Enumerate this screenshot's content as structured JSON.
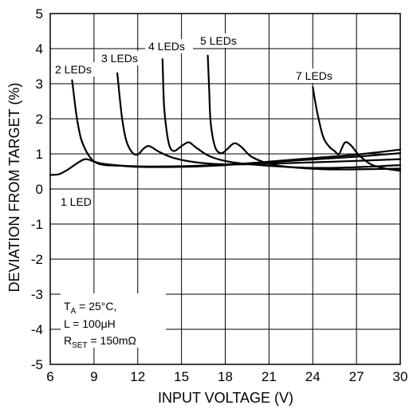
{
  "chart_data": {
    "type": "line",
    "xlabel": "INPUT VOLTAGE (V)",
    "ylabel": "DEVIATION FROM TARGET (%)",
    "xlim": [
      6,
      30
    ],
    "ylim": [
      -5,
      5
    ],
    "x_ticks": [
      "6",
      "9",
      "12",
      "15",
      "18",
      "21",
      "24",
      "27",
      "30"
    ],
    "y_ticks": [
      "5",
      "4",
      "3",
      "2",
      "1",
      "0",
      "-1",
      "-2",
      "-3",
      "-4",
      "-5"
    ],
    "grid": true,
    "series": [
      {
        "name": "1 LED",
        "points": [
          [
            6,
            0.4
          ],
          [
            6.6,
            0.42
          ],
          [
            7.2,
            0.55
          ],
          [
            7.8,
            0.72
          ],
          [
            8.4,
            0.85
          ],
          [
            9.0,
            0.78
          ],
          [
            9.6,
            0.72
          ],
          [
            10.5,
            0.68
          ],
          [
            12,
            0.63
          ],
          [
            15,
            0.63
          ],
          [
            18,
            0.68
          ],
          [
            21,
            0.78
          ],
          [
            24,
            0.88
          ],
          [
            27,
            0.98
          ],
          [
            30,
            1.12
          ]
        ]
      },
      {
        "name": "2 LEDs",
        "points": [
          [
            7.5,
            3.1
          ],
          [
            7.8,
            2.1
          ],
          [
            8.1,
            1.45
          ],
          [
            8.5,
            1.05
          ],
          [
            8.9,
            0.82
          ],
          [
            9.3,
            0.72
          ],
          [
            9.8,
            0.68
          ],
          [
            11,
            0.66
          ],
          [
            13,
            0.64
          ],
          [
            16,
            0.66
          ],
          [
            20,
            0.74
          ],
          [
            24,
            0.84
          ],
          [
            27,
            0.92
          ],
          [
            30,
            1.02
          ]
        ]
      },
      {
        "name": "3 LEDs",
        "points": [
          [
            10.6,
            3.3
          ],
          [
            10.9,
            2.1
          ],
          [
            11.2,
            1.4
          ],
          [
            11.6,
            1.05
          ],
          [
            12.0,
            0.98
          ],
          [
            12.4,
            1.15
          ],
          [
            12.8,
            1.22
          ],
          [
            13.5,
            1.05
          ],
          [
            14.5,
            0.88
          ],
          [
            16,
            0.76
          ],
          [
            18,
            0.7
          ],
          [
            21,
            0.72
          ],
          [
            24,
            0.76
          ],
          [
            27,
            0.8
          ],
          [
            30,
            0.85
          ]
        ]
      },
      {
        "name": "4 LEDs",
        "points": [
          [
            13.7,
            3.7
          ],
          [
            13.8,
            2.4
          ],
          [
            14.0,
            1.6
          ],
          [
            14.2,
            1.2
          ],
          [
            14.5,
            1.08
          ],
          [
            15.0,
            1.22
          ],
          [
            15.5,
            1.33
          ],
          [
            16.0,
            1.18
          ],
          [
            17,
            0.92
          ],
          [
            18.5,
            0.76
          ],
          [
            21,
            0.66
          ],
          [
            24,
            0.6
          ],
          [
            27,
            0.62
          ],
          [
            30,
            0.68
          ]
        ]
      },
      {
        "name": "5 LEDs",
        "points": [
          [
            16.8,
            3.8
          ],
          [
            16.9,
            2.8
          ],
          [
            17.0,
            1.9
          ],
          [
            17.3,
            1.2
          ],
          [
            17.7,
            1.02
          ],
          [
            18.1,
            1.12
          ],
          [
            18.6,
            1.3
          ],
          [
            19.1,
            1.2
          ],
          [
            19.8,
            0.92
          ],
          [
            21,
            0.72
          ],
          [
            22.5,
            0.62
          ],
          [
            25,
            0.56
          ],
          [
            27,
            0.56
          ],
          [
            30,
            0.58
          ]
        ]
      },
      {
        "name": "7 LEDs",
        "points": [
          [
            24.0,
            2.9
          ],
          [
            24.3,
            2.2
          ],
          [
            24.7,
            1.5
          ],
          [
            25.1,
            1.22
          ],
          [
            25.5,
            1.08
          ],
          [
            25.8,
            1.0
          ],
          [
            26.2,
            1.32
          ],
          [
            26.6,
            1.25
          ],
          [
            27.2,
            0.95
          ],
          [
            28,
            0.7
          ],
          [
            29,
            0.58
          ],
          [
            30,
            0.52
          ]
        ]
      }
    ],
    "series_labels": [
      "1 LED",
      "2 LEDs",
      "3 LEDs",
      "4 LEDs",
      "5 LEDs",
      "7 LEDs"
    ],
    "conditions": {
      "line1_main": "T",
      "line1_sub": "A",
      "line1_rest": " = 25°C,",
      "line2": "L = 100μH",
      "line3_main": "R",
      "line3_sub": "SET",
      "line3_rest": " = 150mΩ"
    }
  }
}
